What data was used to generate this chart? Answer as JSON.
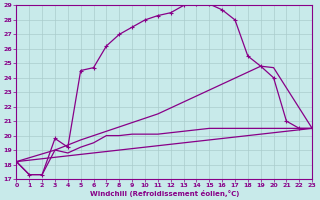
{
  "xlabel": "Windchill (Refroidissement éolien,°C)",
  "bg_color": "#c8eaea",
  "grid_color": "#aacccc",
  "line_color": "#880088",
  "xlim": [
    0,
    23
  ],
  "ylim": [
    17,
    29
  ],
  "xticks": [
    0,
    1,
    2,
    3,
    4,
    5,
    6,
    7,
    8,
    9,
    10,
    11,
    12,
    13,
    14,
    15,
    16,
    17,
    18,
    19,
    20,
    21,
    22,
    23
  ],
  "yticks": [
    17,
    18,
    19,
    20,
    21,
    22,
    23,
    24,
    25,
    26,
    27,
    28,
    29
  ],
  "line1_x": [
    0,
    1,
    2,
    3,
    4,
    5,
    6,
    7,
    8,
    9,
    10,
    11,
    12,
    13,
    14,
    15,
    16,
    17,
    18,
    19,
    20,
    21,
    22,
    23
  ],
  "line1_y": [
    18.2,
    17.3,
    17.3,
    19.8,
    19.2,
    24.5,
    24.7,
    26.2,
    27.0,
    27.5,
    28.0,
    28.3,
    28.5,
    29.0,
    29.1,
    29.1,
    28.7,
    28.0,
    25.5,
    24.8,
    24.0,
    21.0,
    20.5,
    20.5
  ],
  "line2_x": [
    0,
    1,
    2,
    3,
    4,
    5,
    6,
    7,
    8,
    9,
    10,
    11,
    12,
    13,
    14,
    15,
    16,
    17,
    18,
    19,
    20,
    21,
    22,
    23
  ],
  "line2_y": [
    18.2,
    17.3,
    17.3,
    19.0,
    18.8,
    19.2,
    19.5,
    20.0,
    20.0,
    20.1,
    20.1,
    20.1,
    20.2,
    20.3,
    20.4,
    20.5,
    20.5,
    20.5,
    20.5,
    20.5,
    20.5,
    20.5,
    20.5,
    20.5
  ],
  "line3_x": [
    0,
    3,
    5,
    11,
    19,
    20,
    23
  ],
  "line3_y": [
    18.2,
    19.0,
    19.7,
    21.5,
    24.8,
    24.7,
    20.5
  ]
}
